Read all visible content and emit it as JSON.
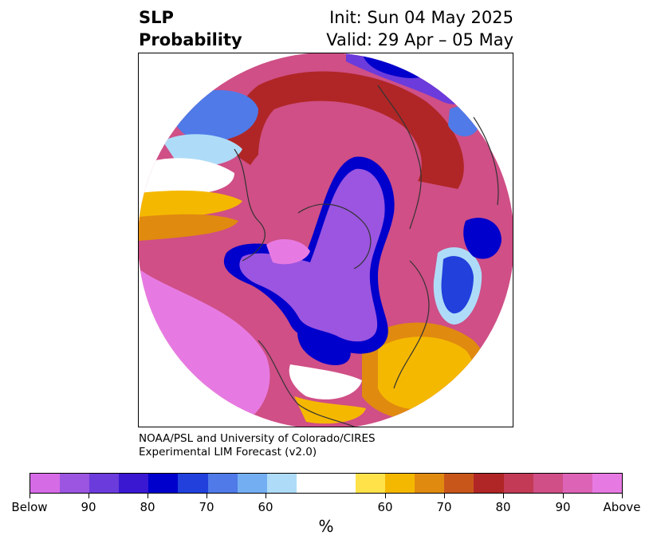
{
  "title": {
    "left_line1": "SLP",
    "left_line2": "Probability",
    "right_line1": "Init: Sun 04 May 2025",
    "right_line2": "Valid: 29 Apr – 05 May"
  },
  "credit": {
    "line1": "NOAA/PSL and University of Colorado/CIRES",
    "line2": "Experimental LIM Forecast (v2.0)"
  },
  "colorbar": {
    "units": "%",
    "colors": [
      "#d66be6",
      "#9b55e0",
      "#6b3bdb",
      "#3a18d2",
      "#0000cc",
      "#2140dc",
      "#4f7ae8",
      "#74aef2",
      "#aedcf8",
      "#ffffff",
      "#ffe24a",
      "#f5b800",
      "#e08a10",
      "#c8561b",
      "#b02626",
      "#c23a55",
      "#cf4f86",
      "#dd63b7",
      "#e77ae2"
    ],
    "tick_labels": [
      "Below",
      "90",
      "80",
      "70",
      "60",
      "60",
      "70",
      "80",
      "90",
      "Above"
    ]
  },
  "map": {
    "projection": "north-polar-stereographic",
    "field": "SLP probability",
    "colors": {
      "above_strong": "#e77ae2",
      "above_mid": "#cf4f86",
      "above_low": "#b02626",
      "warm_edge": "#e08a10",
      "yellow": "#f5b800",
      "below_strong": "#9b55e0",
      "below_mid": "#0000cc",
      "below_low": "#4f7ae8",
      "light_blue": "#aedcf8",
      "coast": "#333333"
    }
  }
}
